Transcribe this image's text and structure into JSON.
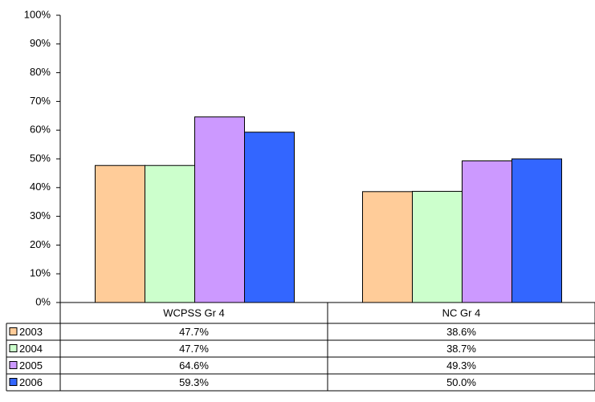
{
  "chart_data": {
    "type": "bar",
    "categories": [
      "WCPSS Gr 4",
      "NC Gr 4"
    ],
    "series": [
      {
        "name": "2003",
        "color": "#FFCC99",
        "values": [
          47.7,
          38.6
        ],
        "value_labels": [
          "47.7%",
          "38.6%"
        ]
      },
      {
        "name": "2004",
        "color": "#CCFFCC",
        "values": [
          47.7,
          38.7
        ],
        "value_labels": [
          "47.7%",
          "38.7%"
        ]
      },
      {
        "name": "2005",
        "color": "#CC99FF",
        "values": [
          64.6,
          49.3
        ],
        "value_labels": [
          "64.6%",
          "49.3%"
        ]
      },
      {
        "name": "2006",
        "color": "#3366FF",
        "values": [
          59.3,
          50.0
        ],
        "value_labels": [
          "59.3%",
          "50.0%"
        ]
      }
    ],
    "ylim": [
      0,
      100
    ],
    "yticks": [
      {
        "value": 0,
        "label": "0%"
      },
      {
        "value": 10,
        "label": "10%"
      },
      {
        "value": 20,
        "label": "20%"
      },
      {
        "value": 30,
        "label": "30%"
      },
      {
        "value": 40,
        "label": "40%"
      },
      {
        "value": 50,
        "label": "50%"
      },
      {
        "value": 60,
        "label": "60%"
      },
      {
        "value": 70,
        "label": "70%"
      },
      {
        "value": 80,
        "label": "80%"
      },
      {
        "value": 90,
        "label": "90%"
      },
      {
        "value": 100,
        "label": "100%"
      }
    ],
    "grid": false
  }
}
